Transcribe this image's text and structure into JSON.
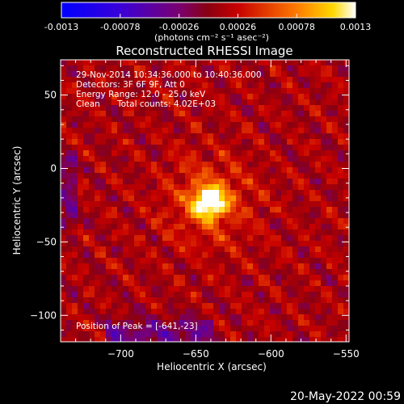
{
  "colorbar": {
    "tick_labels": [
      "-0.0013",
      "-0.00078",
      "-0.00026",
      "0.00026",
      "0.00078",
      "0.0013"
    ],
    "tick_values": [
      -0.0013,
      -0.00078,
      -0.00026,
      0.00026,
      0.00078,
      0.0013
    ],
    "range": [
      -0.0013,
      0.0013
    ],
    "units_line": "(photons cm⁻² s⁻¹ asec⁻²)",
    "stops": [
      {
        "value": -0.0013,
        "color": "#0000ff"
      },
      {
        "value": -0.00078,
        "color": "#3a00d8"
      },
      {
        "value": -0.00026,
        "color": "#7a0070"
      },
      {
        "value": 0.0,
        "color": "#8a0010"
      },
      {
        "value": 0.00026,
        "color": "#c80000"
      },
      {
        "value": 0.00078,
        "color": "#ff7a00"
      },
      {
        "value": 0.0011,
        "color": "#ffd800"
      },
      {
        "value": 0.0013,
        "color": "#ffffff"
      }
    ]
  },
  "chart_data": {
    "type": "heatmap",
    "title": "Reconstructed RHESSI Image",
    "xlabel": "Heliocentric X (arcsec)",
    "ylabel": "Heliocentric Y (arcsec)",
    "xlim": [
      -740,
      -548
    ],
    "ylim": [
      -118,
      74
    ],
    "x_ticks": [
      -700,
      -650,
      -600,
      -550
    ],
    "y_ticks": [
      50,
      0,
      -50,
      -100
    ],
    "x_tick_labels": [
      "−700",
      "−650",
      "−600",
      "−550"
    ],
    "y_tick_labels": [
      "50",
      "0",
      "−50",
      "−100"
    ],
    "peak": {
      "x": -641,
      "y": -23
    },
    "annotations": {
      "time_range": "29-Nov-2014 10:34:36.000 to 10:40:36.000",
      "detectors": "Detectors: 3F 6F 9F, Att 0",
      "energy_range": "Energy Range: 12.0 - 25.0 keV",
      "method": "Clean",
      "total_counts": "Total counts: 4.02E+03",
      "peak_text": "Position of Peak = [-641,-23]"
    }
  },
  "footer": {
    "timestamp": "20-May-2022 00:59"
  }
}
